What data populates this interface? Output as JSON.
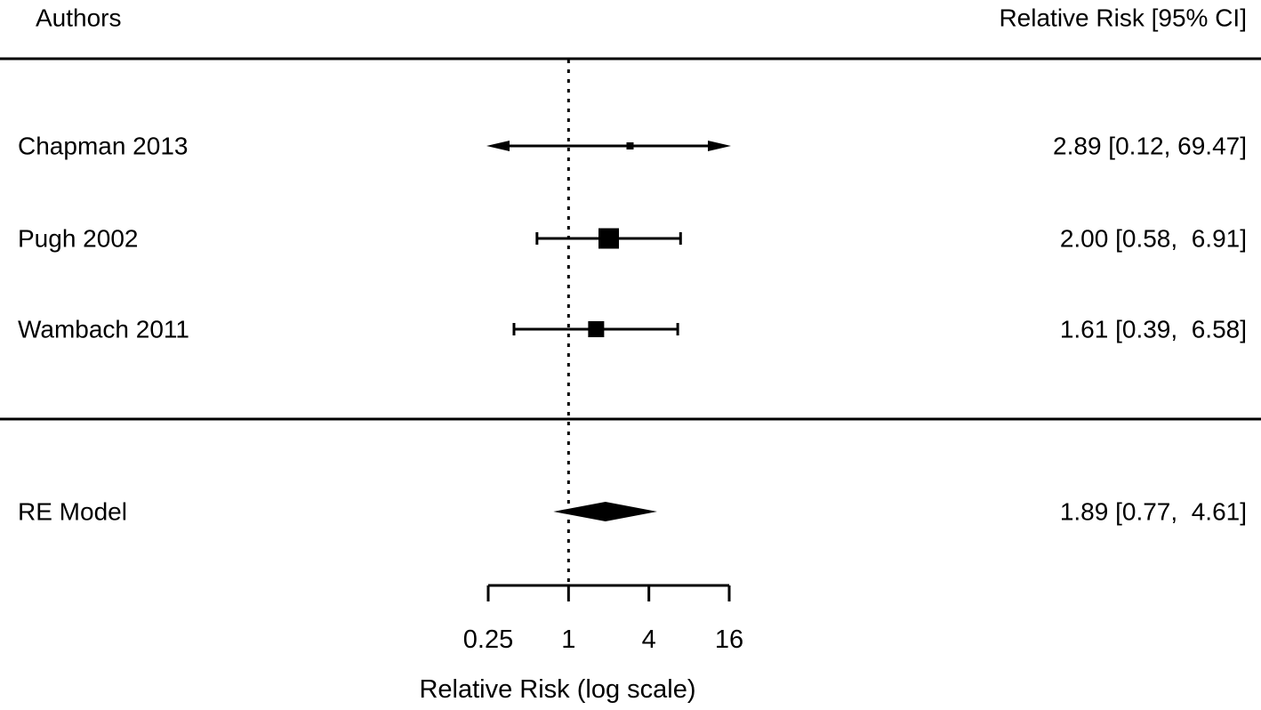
{
  "header": {
    "left": "Authors",
    "right": "Relative Risk [95% CI]"
  },
  "colors": {
    "foreground": "#000000",
    "background": "#ffffff"
  },
  "chart_data": {
    "type": "forest",
    "scale": "log",
    "title": "",
    "xlabel": "Relative Risk (log scale)",
    "x_ticks": [
      "0.25",
      "1",
      "4",
      "16"
    ],
    "x_tick_values": [
      0.25,
      1,
      4,
      16
    ],
    "x_range": [
      0.25,
      16
    ],
    "reference_line": 1,
    "studies": [
      {
        "author": "Chapman 2013",
        "estimate": 2.89,
        "ci_lower": 0.12,
        "ci_upper": 69.47,
        "label": "2.89 [0.12, 69.47]",
        "marker_size": 8
      },
      {
        "author": "Pugh 2002",
        "estimate": 2.0,
        "ci_lower": 0.58,
        "ci_upper": 6.91,
        "label": "2.00 [0.58,  6.91]",
        "marker_size": 23
      },
      {
        "author": "Wambach 2011",
        "estimate": 1.61,
        "ci_lower": 0.39,
        "ci_upper": 6.58,
        "label": "1.61 [0.39,  6.58]",
        "marker_size": 18
      }
    ],
    "summary": {
      "author": "RE Model",
      "estimate": 1.89,
      "ci_lower": 0.77,
      "ci_upper": 4.61,
      "label": "1.89 [0.77,  4.61]"
    }
  }
}
